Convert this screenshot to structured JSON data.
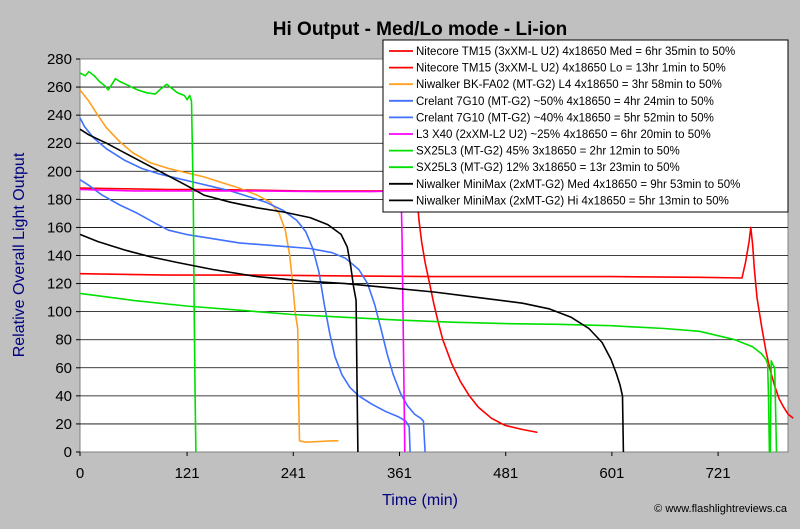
{
  "chart_data": {
    "type": "line",
    "title": "Hi Output - Med/Lo mode - Li-ion",
    "xlabel": "Time (min)",
    "ylabel": "Relative Overall Light Output",
    "xlim": [
      0,
      800
    ],
    "ylim": [
      0,
      280
    ],
    "x_ticks": [
      0,
      121,
      241,
      361,
      481,
      601,
      721
    ],
    "y_ticks": [
      0,
      20,
      40,
      60,
      80,
      100,
      120,
      140,
      160,
      180,
      200,
      220,
      240,
      260,
      280
    ],
    "grid": "horizontal",
    "legend_position": "top-right",
    "credit": "© www.flashlightreviews.ca",
    "series": [
      {
        "name": "Nitecore TM15 (3xXM-L U2) 4x18650 Med = 6hr 35min to 50%",
        "color": "#ff0000",
        "points": [
          [
            0,
            188
          ],
          [
            50,
            187.5
          ],
          [
            100,
            187
          ],
          [
            150,
            187
          ],
          [
            200,
            186.5
          ],
          [
            250,
            186
          ],
          [
            300,
            186
          ],
          [
            350,
            186
          ],
          [
            378,
            185.5
          ],
          [
            380,
            185
          ],
          [
            381,
            180
          ],
          [
            383,
            165
          ],
          [
            386,
            150
          ],
          [
            390,
            135
          ],
          [
            395,
            120
          ],
          [
            400,
            105
          ],
          [
            405,
            92
          ],
          [
            410,
            80
          ],
          [
            420,
            63
          ],
          [
            430,
            50
          ],
          [
            440,
            40
          ],
          [
            450,
            32
          ],
          [
            465,
            24
          ],
          [
            480,
            19
          ],
          [
            500,
            16
          ],
          [
            517,
            14
          ]
        ]
      },
      {
        "name": "Nitecore TM15 (3xXM-L U2) 4x18650 Lo = 13hr 1min to 50%",
        "color": "#ff0000",
        "points": [
          [
            0,
            127
          ],
          [
            100,
            126
          ],
          [
            200,
            126
          ],
          [
            300,
            125.5
          ],
          [
            400,
            125
          ],
          [
            500,
            125
          ],
          [
            600,
            125
          ],
          [
            700,
            124.5
          ],
          [
            748,
            124
          ],
          [
            752,
            135
          ],
          [
            756,
            150
          ],
          [
            758,
            160
          ],
          [
            760,
            148
          ],
          [
            762,
            130
          ],
          [
            765,
            110
          ],
          [
            770,
            90
          ],
          [
            775,
            72
          ],
          [
            780,
            58
          ],
          [
            785,
            47
          ],
          [
            790,
            38
          ],
          [
            795,
            32
          ],
          [
            800,
            27
          ],
          [
            806,
            24
          ]
        ]
      },
      {
        "name": "Niwalker BK-FA02 (MT-G2) L4 4x18650 = 3hr 58min to 50%",
        "color": "#ffa020",
        "points": [
          [
            0,
            258
          ],
          [
            10,
            250
          ],
          [
            20,
            240
          ],
          [
            30,
            231
          ],
          [
            45,
            221
          ],
          [
            60,
            213
          ],
          [
            80,
            206
          ],
          [
            100,
            202
          ],
          [
            120,
            199
          ],
          [
            140,
            196
          ],
          [
            160,
            192
          ],
          [
            180,
            188
          ],
          [
            200,
            183
          ],
          [
            215,
            178
          ],
          [
            225,
            170
          ],
          [
            232,
            158
          ],
          [
            237,
            140
          ],
          [
            240,
            122
          ],
          [
            243,
            100
          ],
          [
            246,
            88
          ],
          [
            247,
            40
          ],
          [
            248,
            8
          ],
          [
            255,
            7
          ],
          [
            270,
            7.5
          ],
          [
            285,
            8
          ],
          [
            292,
            8
          ]
        ]
      },
      {
        "name": "Crelant 7G10 (MT-G2) ~50% 4x18650 = 4hr 24min to 50%",
        "color": "#4070ff",
        "points": [
          [
            0,
            238
          ],
          [
            5,
            232
          ],
          [
            15,
            224
          ],
          [
            30,
            216
          ],
          [
            50,
            208
          ],
          [
            70,
            202
          ],
          [
            90,
            198
          ],
          [
            110,
            195
          ],
          [
            130,
            192
          ],
          [
            150,
            189
          ],
          [
            170,
            186
          ],
          [
            190,
            182
          ],
          [
            210,
            178
          ],
          [
            230,
            172
          ],
          [
            245,
            165
          ],
          [
            255,
            157
          ],
          [
            263,
            145
          ],
          [
            270,
            128
          ],
          [
            276,
            105
          ],
          [
            282,
            85
          ],
          [
            288,
            68
          ],
          [
            296,
            55
          ],
          [
            305,
            46
          ],
          [
            315,
            40
          ],
          [
            330,
            34
          ],
          [
            345,
            29
          ],
          [
            360,
            25
          ],
          [
            368,
            22
          ],
          [
            372,
            18
          ],
          [
            373,
            0
          ]
        ]
      },
      {
        "name": "Crelant 7G10 (MT-G2) ~40% 4x18650 = 5hr 52min to 50%",
        "color": "#4070ff",
        "points": [
          [
            0,
            194
          ],
          [
            10,
            190
          ],
          [
            25,
            183
          ],
          [
            45,
            176
          ],
          [
            65,
            170
          ],
          [
            85,
            163
          ],
          [
            100,
            158
          ],
          [
            120,
            155
          ],
          [
            150,
            152
          ],
          [
            180,
            149
          ],
          [
            220,
            147
          ],
          [
            260,
            145
          ],
          [
            285,
            142
          ],
          [
            300,
            138
          ],
          [
            315,
            130
          ],
          [
            325,
            120
          ],
          [
            333,
            105
          ],
          [
            340,
            88
          ],
          [
            347,
            70
          ],
          [
            354,
            55
          ],
          [
            362,
            42
          ],
          [
            370,
            33
          ],
          [
            378,
            27
          ],
          [
            385,
            24
          ],
          [
            388,
            22
          ],
          [
            390,
            0
          ]
        ]
      },
      {
        "name": "L3 X40 (2xXM-L2 U2) ~25% 4x18650 = 6hr 20min to 50%",
        "color": "#ff00ff",
        "points": [
          [
            0,
            187
          ],
          [
            60,
            186
          ],
          [
            120,
            186
          ],
          [
            200,
            186
          ],
          [
            270,
            185.5
          ],
          [
            330,
            185.5
          ],
          [
            360,
            186
          ],
          [
            362,
            186
          ],
          [
            363,
            180
          ],
          [
            364,
            150
          ],
          [
            365,
            100
          ],
          [
            366,
            50
          ],
          [
            367,
            0
          ]
        ]
      },
      {
        "name": "SX25L3 (MT-G2) 45% 3x18650 = 2hr 12min to 50%",
        "color": "#00e000",
        "points": [
          [
            0,
            270
          ],
          [
            6,
            268
          ],
          [
            10,
            271
          ],
          [
            16,
            268
          ],
          [
            22,
            264
          ],
          [
            28,
            261
          ],
          [
            32,
            258
          ],
          [
            36,
            262
          ],
          [
            40,
            266
          ],
          [
            45,
            264
          ],
          [
            55,
            261
          ],
          [
            65,
            258
          ],
          [
            75,
            256
          ],
          [
            85,
            255
          ],
          [
            90,
            258
          ],
          [
            98,
            262
          ],
          [
            102,
            260
          ],
          [
            110,
            256
          ],
          [
            118,
            254
          ],
          [
            121,
            251
          ],
          [
            124,
            254
          ],
          [
            126,
            250
          ],
          [
            128,
            180
          ],
          [
            129,
            100
          ],
          [
            130,
            40
          ],
          [
            131,
            0
          ]
        ]
      },
      {
        "name": "SX25L3 (MT-G2) 12% 3x18650 = 13r 23min to 50%",
        "color": "#00e000",
        "points": [
          [
            0,
            113
          ],
          [
            60,
            108
          ],
          [
            120,
            104
          ],
          [
            180,
            101
          ],
          [
            240,
            98
          ],
          [
            300,
            96
          ],
          [
            360,
            94
          ],
          [
            420,
            92.5
          ],
          [
            480,
            91.5
          ],
          [
            540,
            91
          ],
          [
            600,
            90
          ],
          [
            660,
            88
          ],
          [
            700,
            86
          ],
          [
            740,
            80
          ],
          [
            760,
            75
          ],
          [
            770,
            70
          ],
          [
            775,
            66
          ],
          [
            777,
            63
          ],
          [
            778,
            40
          ],
          [
            779,
            0
          ],
          [
            780,
            0
          ],
          [
            781,
            65
          ],
          [
            783,
            62
          ],
          [
            785,
            60
          ],
          [
            786,
            30
          ],
          [
            787,
            0
          ]
        ]
      },
      {
        "name": "Niwalker MiniMax (2xMT-G2) Med 4x18650 = 9hr 53min to 50%",
        "color": "#000000",
        "points": [
          [
            0,
            155
          ],
          [
            20,
            150
          ],
          [
            50,
            144
          ],
          [
            80,
            139
          ],
          [
            110,
            135
          ],
          [
            150,
            130
          ],
          [
            200,
            125
          ],
          [
            250,
            122
          ],
          [
            300,
            120
          ],
          [
            350,
            117
          ],
          [
            400,
            114
          ],
          [
            450,
            110
          ],
          [
            500,
            106
          ],
          [
            530,
            102
          ],
          [
            555,
            96
          ],
          [
            575,
            88
          ],
          [
            590,
            78
          ],
          [
            600,
            66
          ],
          [
            606,
            56
          ],
          [
            610,
            48
          ],
          [
            613,
            40
          ],
          [
            614,
            0
          ]
        ]
      },
      {
        "name": "Niwalker MiniMax (2xMT-G2) Hi 4x18650 = 5hr 13min to 50%",
        "color": "#000000",
        "points": [
          [
            0,
            230
          ],
          [
            10,
            226
          ],
          [
            30,
            220
          ],
          [
            60,
            210
          ],
          [
            90,
            200
          ],
          [
            120,
            190
          ],
          [
            140,
            183
          ],
          [
            170,
            178
          ],
          [
            200,
            174
          ],
          [
            230,
            171
          ],
          [
            260,
            167
          ],
          [
            280,
            162
          ],
          [
            295,
            155
          ],
          [
            302,
            146
          ],
          [
            306,
            132
          ],
          [
            309,
            118
          ],
          [
            312,
            108
          ],
          [
            313,
            50
          ],
          [
            314,
            0
          ]
        ]
      }
    ]
  }
}
